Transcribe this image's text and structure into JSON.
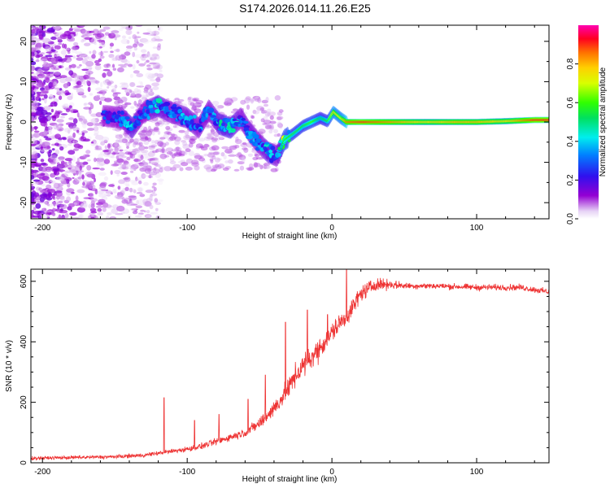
{
  "title": "S174.2026.014.11.26.E25",
  "chart_data": [
    {
      "type": "heatmap",
      "name": "spectrogram",
      "xlabel": "Height of straight line (km)",
      "ylabel": "Frequency (Hz)",
      "xlim": [
        -208,
        150
      ],
      "ylim": [
        -24,
        24
      ],
      "xticks": [
        -200,
        -100,
        0,
        100
      ],
      "yticks": [
        -20,
        -10,
        0,
        10,
        20
      ],
      "ridge": [
        {
          "x": -155,
          "y": 1.5,
          "a": 0.25
        },
        {
          "x": -145,
          "y": 1.0,
          "a": 0.3
        },
        {
          "x": -138,
          "y": -1.5,
          "a": 0.4
        },
        {
          "x": -130,
          "y": 2.5,
          "a": 0.25
        },
        {
          "x": -120,
          "y": 4.0,
          "a": 0.4
        },
        {
          "x": -112,
          "y": 2.5,
          "a": 0.3
        },
        {
          "x": -100,
          "y": 1.0,
          "a": 0.35
        },
        {
          "x": -92,
          "y": -1.5,
          "a": 0.3
        },
        {
          "x": -85,
          "y": 3.0,
          "a": 0.3
        },
        {
          "x": -78,
          "y": -0.5,
          "a": 0.4
        },
        {
          "x": -70,
          "y": -1.5,
          "a": 0.45
        },
        {
          "x": -63,
          "y": 1.0,
          "a": 0.3
        },
        {
          "x": -57,
          "y": -2.5,
          "a": 0.35
        },
        {
          "x": -50,
          "y": -5.5,
          "a": 0.3
        },
        {
          "x": -44,
          "y": -7.5,
          "a": 0.4
        },
        {
          "x": -38,
          "y": -8.5,
          "a": 0.3
        },
        {
          "x": -33,
          "y": -4.5,
          "a": 0.6
        },
        {
          "x": -27,
          "y": -3.0,
          "a": 0.55
        },
        {
          "x": -20,
          "y": -1.0,
          "a": 0.55
        },
        {
          "x": -14,
          "y": 0.0,
          "a": 0.6
        },
        {
          "x": -8,
          "y": 1.0,
          "a": 0.5
        },
        {
          "x": -3,
          "y": 0.2,
          "a": 0.55
        },
        {
          "x": 1,
          "y": 2.5,
          "a": 0.75
        },
        {
          "x": 6,
          "y": 1.0,
          "a": 0.7
        },
        {
          "x": 10,
          "y": 0.0,
          "a": 0.85
        },
        {
          "x": 20,
          "y": 0.0,
          "a": 0.9
        },
        {
          "x": 35,
          "y": 0.0,
          "a": 0.85
        },
        {
          "x": 50,
          "y": 0.0,
          "a": 0.8
        },
        {
          "x": 65,
          "y": 0.0,
          "a": 0.75
        },
        {
          "x": 85,
          "y": 0.0,
          "a": 0.8
        },
        {
          "x": 100,
          "y": 0.0,
          "a": 0.8
        },
        {
          "x": 120,
          "y": 0.2,
          "a": 0.75
        },
        {
          "x": 140,
          "y": 0.5,
          "a": 0.9
        }
      ]
    },
    {
      "type": "colorbar",
      "label": "Normalized spectral amplitude",
      "range": [
        0,
        1
      ],
      "ticks": [
        "0.0",
        "0.2",
        "0.4",
        "0.6",
        "0.8"
      ]
    },
    {
      "type": "line",
      "name": "snr",
      "xlabel": "Height of straight line (km)",
      "ylabel": "SNR (10 * v/v)",
      "xlim": [
        -208,
        150
      ],
      "ylim": [
        0,
        640
      ],
      "xticks": [
        -200,
        -100,
        0,
        100
      ],
      "yticks": [
        0,
        200,
        400,
        600
      ],
      "color": "#ee3333",
      "envelope": {
        "x": [
          -208,
          -150,
          -130,
          -115,
          -100,
          -90,
          -80,
          -70,
          -60,
          -50,
          -40,
          -32,
          -25,
          -18,
          -10,
          -5,
          0,
          5,
          10,
          15,
          20,
          25,
          30,
          40,
          50,
          70,
          100,
          130,
          150
        ],
        "y": [
          15,
          20,
          25,
          35,
          45,
          55,
          70,
          85,
          100,
          130,
          180,
          230,
          290,
          330,
          370,
          400,
          430,
          460,
          480,
          520,
          560,
          575,
          590,
          590,
          585,
          585,
          580,
          580,
          565
        ]
      },
      "noise": {
        "x": [
          -208,
          -120,
          -60,
          -20,
          20,
          50,
          150
        ],
        "y": [
          8,
          10,
          20,
          60,
          40,
          15,
          15
        ]
      },
      "spikes": [
        {
          "x": -116,
          "y": 215
        },
        {
          "x": -95,
          "y": 140
        },
        {
          "x": -78,
          "y": 160
        },
        {
          "x": -58,
          "y": 210
        },
        {
          "x": -46,
          "y": 290
        },
        {
          "x": -32,
          "y": 465
        },
        {
          "x": -17,
          "y": 505
        },
        {
          "x": -3,
          "y": 490
        },
        {
          "x": 10,
          "y": 640
        }
      ]
    }
  ]
}
